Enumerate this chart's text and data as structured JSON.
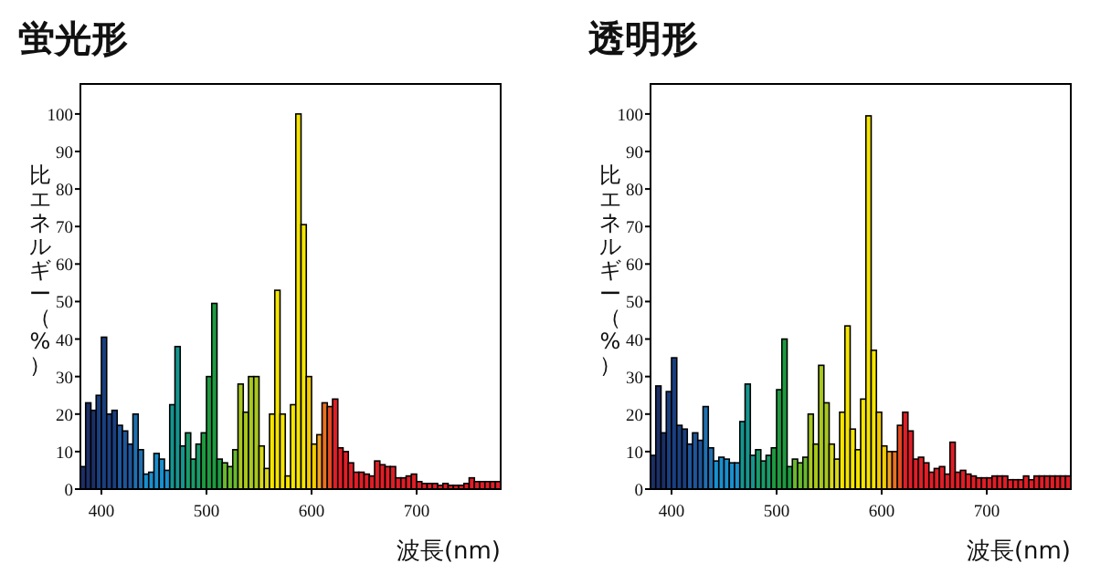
{
  "chart_data": [
    {
      "type": "histogram",
      "title": "蛍光形",
      "xlabel": "波長(nm)",
      "ylabel": "比エネルギー（%）",
      "xlim": [
        380,
        780
      ],
      "ylim": [
        0,
        108
      ],
      "xticks": [
        400,
        500,
        600,
        700
      ],
      "yticks": [
        0,
        10,
        20,
        30,
        40,
        50,
        60,
        70,
        80,
        90,
        100
      ],
      "bins": [
        380,
        385,
        390,
        395,
        400,
        405,
        410,
        415,
        420,
        425,
        430,
        435,
        440,
        445,
        450,
        455,
        460,
        465,
        470,
        475,
        480,
        485,
        490,
        495,
        500,
        505,
        510,
        515,
        520,
        525,
        530,
        535,
        540,
        545,
        550,
        555,
        560,
        565,
        570,
        575,
        580,
        585,
        590,
        595,
        600,
        605,
        610,
        615,
        620,
        625,
        630,
        635,
        640,
        645,
        650,
        655,
        660,
        665,
        670,
        675,
        680,
        685,
        690,
        695,
        700,
        705,
        710,
        715,
        720,
        725,
        730,
        735,
        740,
        745,
        750,
        755,
        760,
        765,
        770,
        775,
        780
      ],
      "values": [
        6,
        23,
        21,
        25,
        40.5,
        20,
        21,
        17,
        15.5,
        12,
        20,
        10.5,
        4,
        4.5,
        9.5,
        8,
        5,
        22.5,
        38,
        11.5,
        15,
        8,
        12,
        15,
        30,
        49.5,
        8,
        7,
        6,
        10.5,
        28,
        20.5,
        30,
        30,
        11.5,
        5.5,
        20,
        53,
        20,
        3.5,
        22.5,
        100,
        70.5,
        30,
        12,
        14.5,
        23,
        22,
        24,
        11,
        10,
        7,
        4.5,
        4.5,
        4,
        3.5,
        7.5,
        6.5,
        6,
        6,
        3,
        3,
        3.5,
        4,
        2,
        1.5,
        1.5,
        1.5,
        1,
        1.5,
        1,
        1,
        1,
        1.5,
        3,
        2,
        2,
        2,
        2,
        2
      ],
      "colors": [
        "#1c2f66",
        "#1c2f66",
        "#1c2f66",
        "#1a3f7f",
        "#1a3f7f",
        "#1a3f7f",
        "#1a3f7f",
        "#1f5599",
        "#1f5599",
        "#1f5599",
        "#2070b0",
        "#2070b0",
        "#1a8fcc",
        "#1a8fcc",
        "#1a8fcc",
        "#1a8fcc",
        "#1a8fcc",
        "#16958f",
        "#16958f",
        "#16958f",
        "#1a9a6a",
        "#1a9a6a",
        "#1a9a6a",
        "#1e9a40",
        "#1e9a40",
        "#1e9a40",
        "#1e9a40",
        "#6ab82e",
        "#6ab82e",
        "#6ab82e",
        "#a8c81e",
        "#a8c81e",
        "#a8c81e",
        "#a8c81e",
        "#d8d81a",
        "#d8d81a",
        "#f5e400",
        "#f5e400",
        "#f5e400",
        "#f5e400",
        "#f5e400",
        "#f5e400",
        "#f5e400",
        "#f2cc00",
        "#f2cc00",
        "#f0a020",
        "#e87020",
        "#e44a20",
        "#e01e26",
        "#e01e26",
        "#e01e26",
        "#e01e26",
        "#e01e26",
        "#e01e26",
        "#e01e26",
        "#e01e26",
        "#e01e26",
        "#e01e26",
        "#e01e26",
        "#e01e26",
        "#e01e26",
        "#e01e26",
        "#e01e26",
        "#e01e26",
        "#e01e26",
        "#e01e26",
        "#e01e26",
        "#e01e26",
        "#e01e26",
        "#e01e26",
        "#e01e26",
        "#e01e26",
        "#e01e26",
        "#e01e26",
        "#e01e26",
        "#e01e26",
        "#e01e26",
        "#e01e26",
        "#e01e26",
        "#e01e26"
      ]
    },
    {
      "type": "histogram",
      "title": "透明形",
      "xlabel": "波長(nm)",
      "ylabel": "比エネルギー（%）",
      "xlim": [
        380,
        780
      ],
      "ylim": [
        0,
        108
      ],
      "xticks": [
        400,
        500,
        600,
        700
      ],
      "yticks": [
        0,
        10,
        20,
        30,
        40,
        50,
        60,
        70,
        80,
        90,
        100
      ],
      "bins": [
        380,
        385,
        390,
        395,
        400,
        405,
        410,
        415,
        420,
        425,
        430,
        435,
        440,
        445,
        450,
        455,
        460,
        465,
        470,
        475,
        480,
        485,
        490,
        495,
        500,
        505,
        510,
        515,
        520,
        525,
        530,
        535,
        540,
        545,
        550,
        555,
        560,
        565,
        570,
        575,
        580,
        585,
        590,
        595,
        600,
        605,
        610,
        615,
        620,
        625,
        630,
        635,
        640,
        645,
        650,
        655,
        660,
        665,
        670,
        675,
        680,
        685,
        690,
        695,
        700,
        705,
        710,
        715,
        720,
        725,
        730,
        735,
        740,
        745,
        750,
        755,
        760,
        765,
        770,
        775,
        780
      ],
      "values": [
        9,
        27.5,
        15,
        26,
        35,
        17,
        16,
        12,
        15,
        13,
        22,
        11,
        7.5,
        8.5,
        8,
        7,
        7,
        18,
        28,
        9,
        10.5,
        7.5,
        9,
        11,
        26.5,
        40,
        6,
        8,
        7,
        8.5,
        20,
        12,
        33,
        23,
        12,
        8,
        20.5,
        43.5,
        16,
        10.5,
        24,
        99.5,
        37,
        20.5,
        11.5,
        10,
        10,
        17,
        20.5,
        15.5,
        8,
        8.5,
        7,
        4.5,
        5.5,
        6,
        4,
        12.5,
        4.5,
        5,
        4,
        3.5,
        3,
        3,
        3,
        3.5,
        3.5,
        3.5,
        2.5,
        2.5,
        2.5,
        3.5,
        2.5,
        3.5,
        3.5,
        3.5,
        3.5,
        3.5,
        3.5,
        3.5
      ],
      "colors": [
        "#1c2f66",
        "#1c2f66",
        "#1c2f66",
        "#1a3f7f",
        "#1a3f7f",
        "#1a3f7f",
        "#1a3f7f",
        "#1f5599",
        "#1f5599",
        "#1f5599",
        "#2070b0",
        "#2070b0",
        "#1a8fcc",
        "#1a8fcc",
        "#1a8fcc",
        "#1a8fcc",
        "#1a8fcc",
        "#16958f",
        "#16958f",
        "#16958f",
        "#1a9a6a",
        "#1a9a6a",
        "#1a9a6a",
        "#1e9a40",
        "#1e9a40",
        "#1e9a40",
        "#1e9a40",
        "#6ab82e",
        "#6ab82e",
        "#6ab82e",
        "#a8c81e",
        "#a8c81e",
        "#a8c81e",
        "#a8c81e",
        "#d8d81a",
        "#d8d81a",
        "#f5e400",
        "#f5e400",
        "#f5e400",
        "#f5e400",
        "#f5e400",
        "#f5e400",
        "#f5e400",
        "#f2cc00",
        "#f2cc00",
        "#f0a020",
        "#e87020",
        "#e44a20",
        "#e01e26",
        "#e01e26",
        "#e01e26",
        "#e01e26",
        "#e01e26",
        "#e01e26",
        "#e01e26",
        "#e01e26",
        "#e01e26",
        "#e01e26",
        "#e01e26",
        "#e01e26",
        "#e01e26",
        "#e01e26",
        "#e01e26",
        "#e01e26",
        "#e01e26",
        "#e01e26",
        "#e01e26",
        "#e01e26",
        "#e01e26",
        "#e01e26",
        "#e01e26",
        "#e01e26",
        "#e01e26",
        "#e01e26",
        "#e01e26",
        "#e01e26",
        "#e01e26",
        "#e01e26",
        "#e01e26",
        "#e01e26"
      ]
    }
  ]
}
